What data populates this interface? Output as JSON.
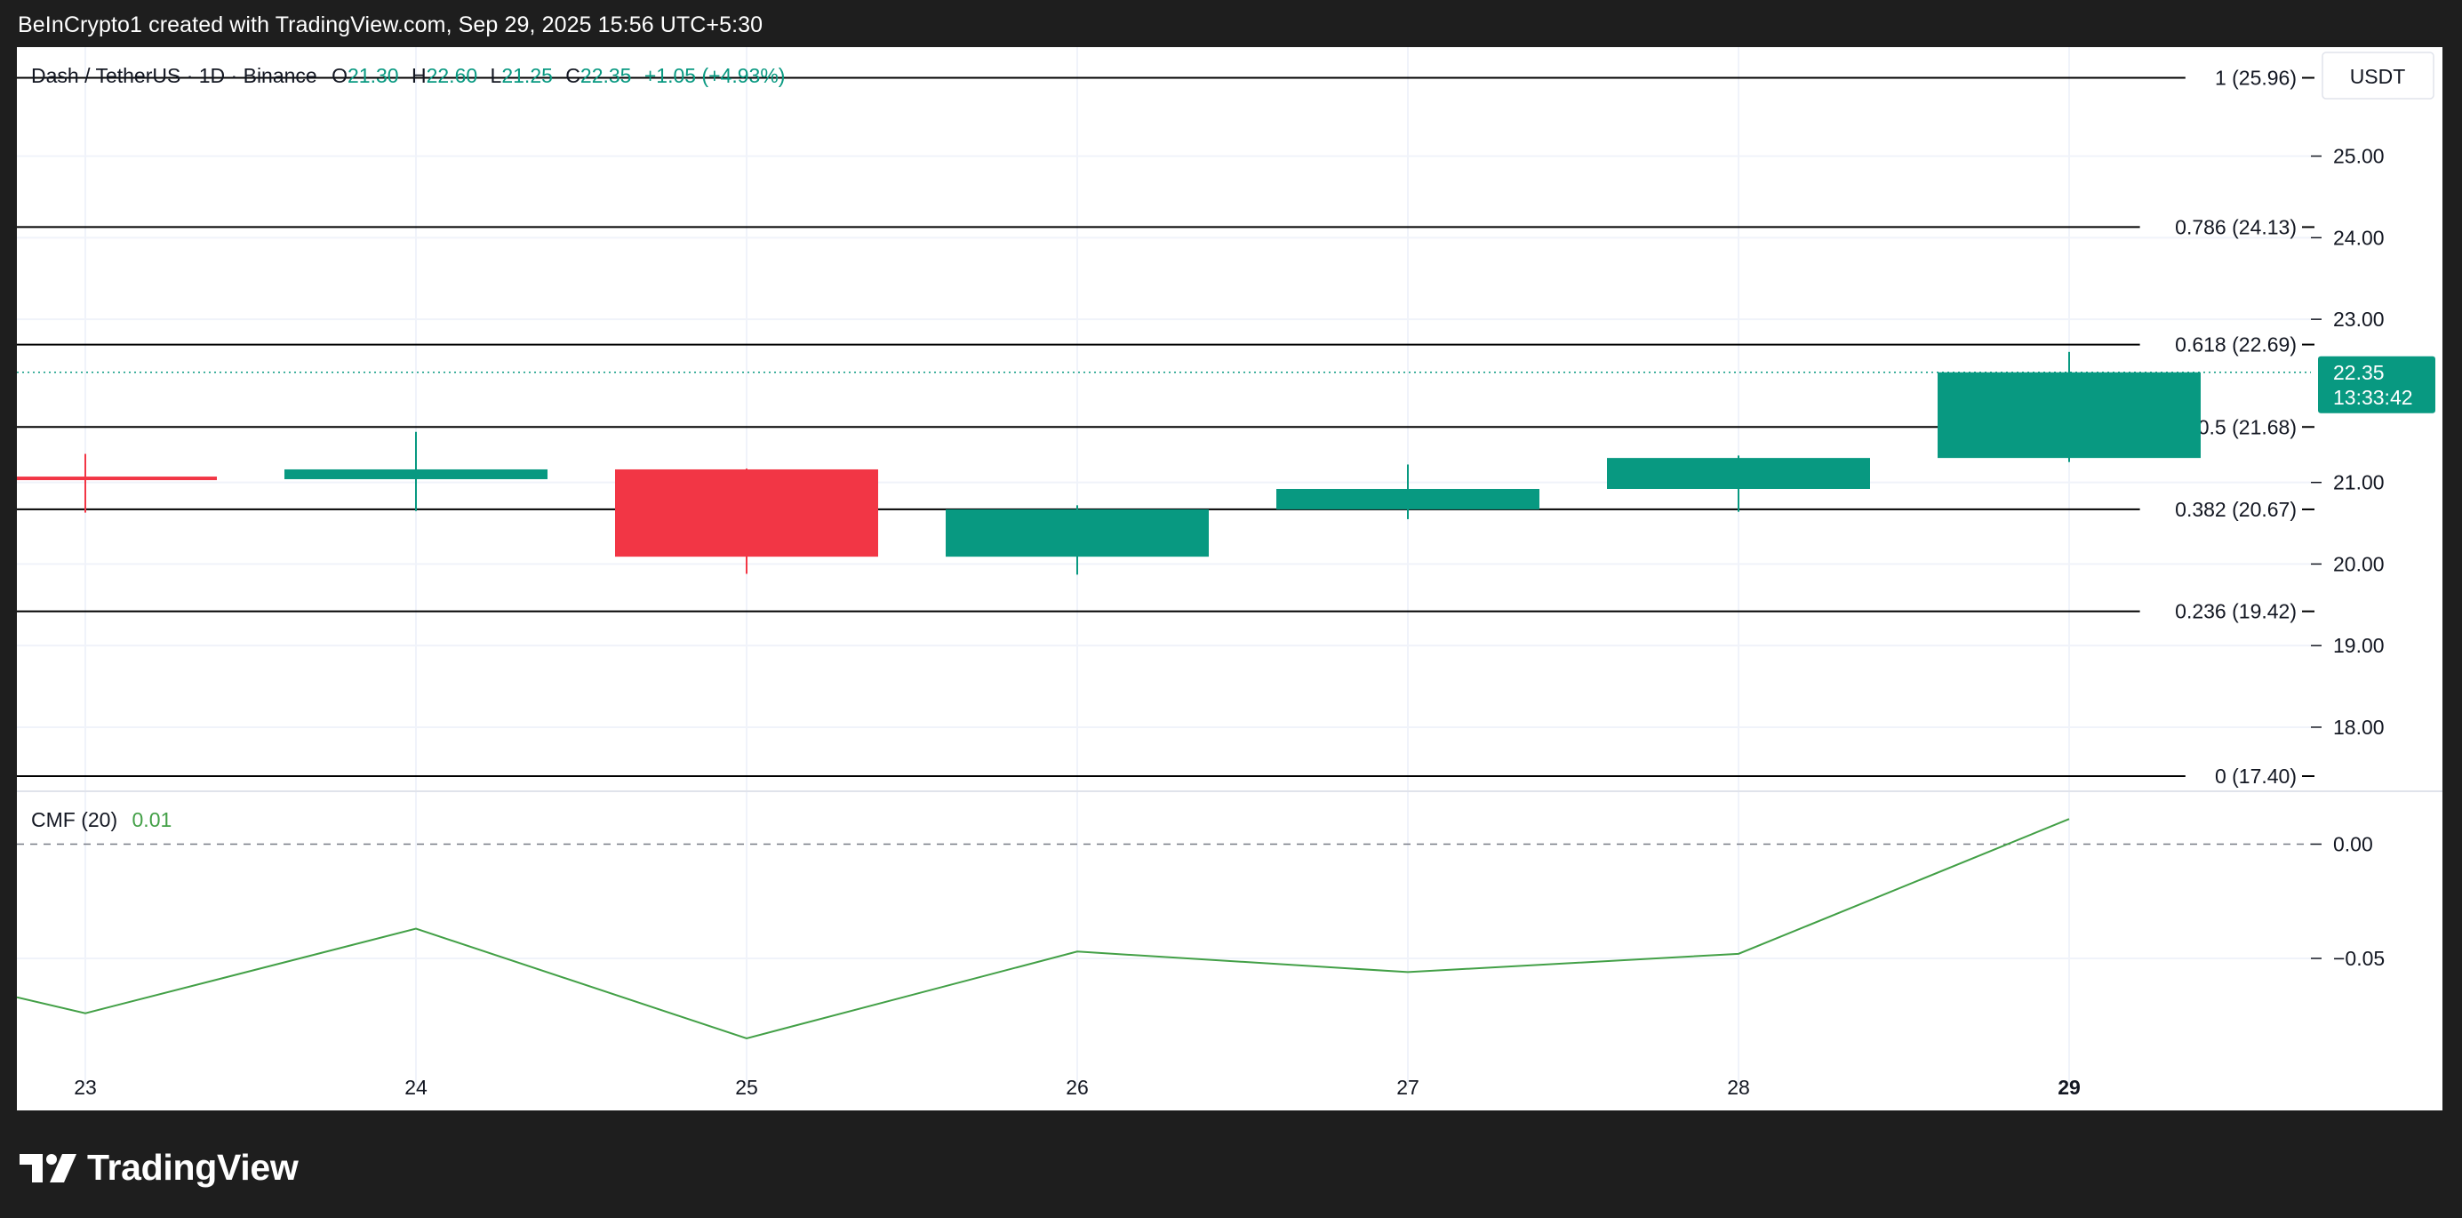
{
  "attribution": "BeInCrypto1 created with TradingView.com, Sep 29, 2025 15:56 UTC+5:30",
  "footer": {
    "brand": "TradingView",
    "logo_icon": "tradingview-logo-icon"
  },
  "colors": {
    "up": "#089981",
    "down": "#f23645",
    "cmf": "#43a047",
    "fib": "#000000",
    "grid": "#f0f3fa",
    "text": "#131722"
  },
  "chart_data": [
    {
      "type": "candlestick",
      "legend": {
        "symbol": "Dash / TetherUS · 1D · Binance",
        "open_label": "O",
        "open": "21.30",
        "high_label": "H",
        "high": "22.60",
        "low_label": "L",
        "low": "21.25",
        "close_label": "C",
        "close": "22.35",
        "change": "+1.05 (+4.93%)"
      },
      "currency": "USDT",
      "x_labels": [
        "23",
        "24",
        "25",
        "26",
        "27",
        "28",
        "29"
      ],
      "current_x_label": "29",
      "candles": [
        {
          "x": "23",
          "open": 21.05,
          "high": 21.35,
          "low": 20.63,
          "close": 21.04
        },
        {
          "x": "24",
          "open": 21.04,
          "high": 21.62,
          "low": 20.65,
          "close": 21.16
        },
        {
          "x": "25",
          "open": 21.16,
          "high": 21.17,
          "low": 19.88,
          "close": 20.09
        },
        {
          "x": "26",
          "open": 20.09,
          "high": 20.72,
          "low": 19.87,
          "close": 20.67
        },
        {
          "x": "27",
          "open": 20.67,
          "high": 21.22,
          "low": 20.55,
          "close": 20.92
        },
        {
          "x": "28",
          "open": 20.92,
          "high": 21.33,
          "low": 20.64,
          "close": 21.3
        },
        {
          "x": "29",
          "open": 21.3,
          "high": 22.6,
          "low": 21.25,
          "close": 22.35
        }
      ],
      "y_ticks": [
        "25.00",
        "24.00",
        "23.00",
        "21.00",
        "20.00",
        "19.00",
        "18.00"
      ],
      "ylim": [
        17.2,
        26.2
      ],
      "fib_levels": [
        {
          "value": 25.96,
          "label": "1 (25.96)"
        },
        {
          "value": 24.13,
          "label": "0.786 (24.13)"
        },
        {
          "value": 22.69,
          "label": "0.618 (22.69)"
        },
        {
          "value": 21.68,
          "label": "0.5 (21.68)"
        },
        {
          "value": 20.67,
          "label": "0.382 (20.67)"
        },
        {
          "value": 19.42,
          "label": "0.236 (19.42)"
        },
        {
          "value": 17.4,
          "label": "0 (17.40)"
        }
      ],
      "last_price": {
        "value": 22.35,
        "label": "22.35",
        "countdown": "13:33:42"
      }
    },
    {
      "type": "line",
      "name": "CMF (20)",
      "current_value": "0.01",
      "x": [
        "23",
        "24",
        "25",
        "26",
        "27",
        "28",
        "29"
      ],
      "values": [
        -0.074,
        -0.037,
        -0.085,
        -0.047,
        -0.056,
        -0.048,
        0.011
      ],
      "start_value": -0.067,
      "y_ticks": [
        "0.00",
        "−0.05"
      ],
      "zero_line": "dashed",
      "ylim": [
        -0.095,
        0.02
      ]
    }
  ]
}
